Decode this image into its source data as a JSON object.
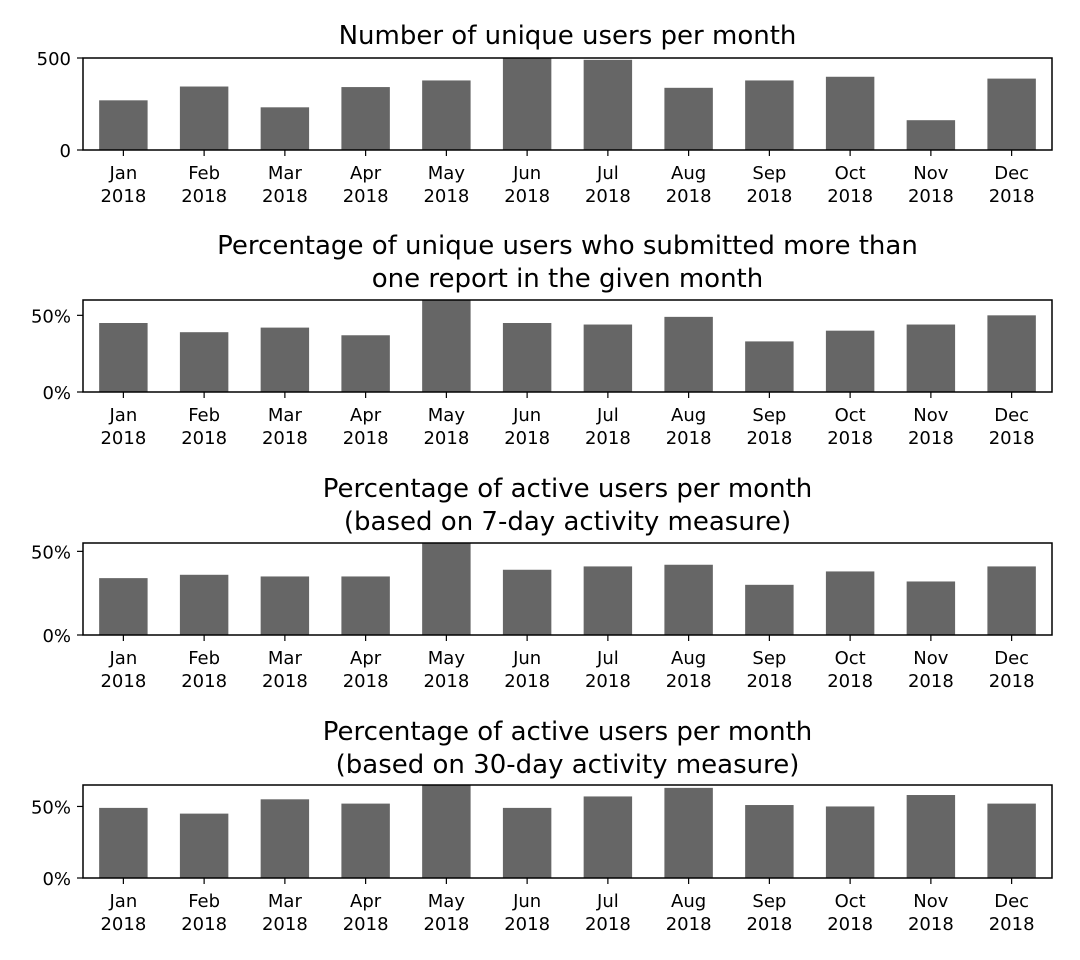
{
  "chart_data": [
    {
      "type": "bar",
      "title_lines": [
        "Number of unique users per month"
      ],
      "categories": [
        "Jan 2018",
        "Feb 2018",
        "Mar 2018",
        "Apr 2018",
        "May 2018",
        "Jun 2018",
        "Jul 2018",
        "Aug 2018",
        "Sep 2018",
        "Oct 2018",
        "Nov 2018",
        "Dec 2018"
      ],
      "values": [
        270,
        345,
        232,
        342,
        378,
        510,
        490,
        338,
        378,
        398,
        162,
        388
      ],
      "ylim": [
        0,
        500
      ],
      "yticks": [
        0,
        500
      ],
      "ytick_labels": [
        "0",
        "500"
      ],
      "bar_color": "#666666"
    },
    {
      "type": "bar",
      "title_lines": [
        "Percentage of unique users who submitted more than",
        "one report in the given month"
      ],
      "categories": [
        "Jan 2018",
        "Feb 2018",
        "Mar 2018",
        "Apr 2018",
        "May 2018",
        "Jun 2018",
        "Jul 2018",
        "Aug 2018",
        "Sep 2018",
        "Oct 2018",
        "Nov 2018",
        "Dec 2018"
      ],
      "values": [
        45,
        39,
        42,
        37,
        61,
        45,
        44,
        49,
        33,
        40,
        44,
        50
      ],
      "ylim": [
        0,
        60
      ],
      "yticks": [
        0,
        50
      ],
      "ytick_labels": [
        "0%",
        "50%"
      ],
      "bar_color": "#666666"
    },
    {
      "type": "bar",
      "title_lines": [
        "Percentage of active users per month",
        "(based on 7-day activity measure)"
      ],
      "categories": [
        "Jan 2018",
        "Feb 2018",
        "Mar 2018",
        "Apr 2018",
        "May 2018",
        "Jun 2018",
        "Jul 2018",
        "Aug 2018",
        "Sep 2018",
        "Oct 2018",
        "Nov 2018",
        "Dec 2018"
      ],
      "values": [
        34,
        36,
        35,
        35,
        56,
        39,
        41,
        42,
        30,
        38,
        32,
        41
      ],
      "ylim": [
        0,
        55
      ],
      "yticks": [
        0,
        50
      ],
      "ytick_labels": [
        "0%",
        "50%"
      ],
      "bar_color": "#666666"
    },
    {
      "type": "bar",
      "title_lines": [
        "Percentage of active users per month",
        "(based on 30-day activity measure)"
      ],
      "categories": [
        "Jan 2018",
        "Feb 2018",
        "Mar 2018",
        "Apr 2018",
        "May 2018",
        "Jun 2018",
        "Jul 2018",
        "Aug 2018",
        "Sep 2018",
        "Oct 2018",
        "Nov 2018",
        "Dec 2018"
      ],
      "values": [
        49,
        45,
        55,
        52,
        66,
        49,
        57,
        63,
        51,
        50,
        58,
        52
      ],
      "ylim": [
        0,
        65
      ],
      "yticks": [
        0,
        50
      ],
      "ytick_labels": [
        "0%",
        "50%"
      ],
      "bar_color": "#666666"
    }
  ]
}
